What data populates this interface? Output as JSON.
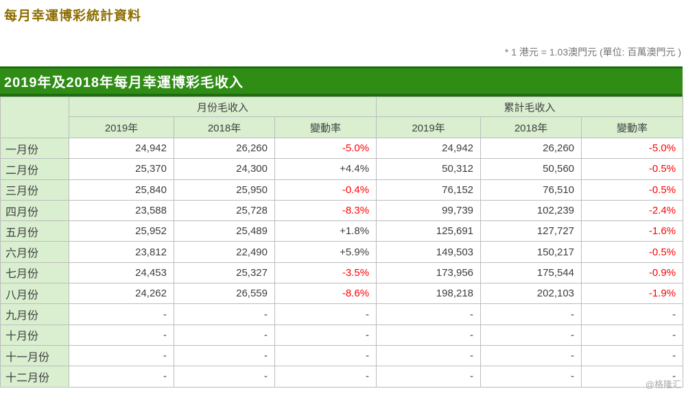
{
  "page": {
    "title": "每月幸運博彩統計資料",
    "note": "* 1 港元 = 1.03澳門元 (單位: 百萬澳門元  )",
    "watermark": "@格隆汇"
  },
  "section": {
    "title": "2019年及2018年每月幸運博彩毛收入"
  },
  "colors": {
    "title_gold": "#8c6d00",
    "section_green": "#2f8c15",
    "section_green_dark": "#1d6d0d",
    "header_light_green": "#d9efd0",
    "negative_red": "#ff0000",
    "text_dark": "#3c3c3c"
  },
  "table": {
    "group_headers": [
      "月份毛收入",
      "累計毛收入"
    ],
    "sub_headers": [
      "2019年",
      "2018年",
      "變動率"
    ],
    "rows": [
      {
        "month": "一月份",
        "monthly_2019": "24,942",
        "monthly_2018": "26,260",
        "monthly_change": "-5.0%",
        "cum_2019": "24,942",
        "cum_2018": "26,260",
        "cum_change": "-5.0%"
      },
      {
        "month": "二月份",
        "monthly_2019": "25,370",
        "monthly_2018": "24,300",
        "monthly_change": "+4.4%",
        "cum_2019": "50,312",
        "cum_2018": "50,560",
        "cum_change": "-0.5%"
      },
      {
        "month": "三月份",
        "monthly_2019": "25,840",
        "monthly_2018": "25,950",
        "monthly_change": "-0.4%",
        "cum_2019": "76,152",
        "cum_2018": "76,510",
        "cum_change": "-0.5%"
      },
      {
        "month": "四月份",
        "monthly_2019": "23,588",
        "monthly_2018": "25,728",
        "monthly_change": "-8.3%",
        "cum_2019": "99,739",
        "cum_2018": "102,239",
        "cum_change": "-2.4%"
      },
      {
        "month": "五月份",
        "monthly_2019": "25,952",
        "monthly_2018": "25,489",
        "monthly_change": "+1.8%",
        "cum_2019": "125,691",
        "cum_2018": "127,727",
        "cum_change": "-1.6%"
      },
      {
        "month": "六月份",
        "monthly_2019": "23,812",
        "monthly_2018": "22,490",
        "monthly_change": "+5.9%",
        "cum_2019": "149,503",
        "cum_2018": "150,217",
        "cum_change": "-0.5%"
      },
      {
        "month": "七月份",
        "monthly_2019": "24,453",
        "monthly_2018": "25,327",
        "monthly_change": "-3.5%",
        "cum_2019": "173,956",
        "cum_2018": "175,544",
        "cum_change": "-0.9%"
      },
      {
        "month": "八月份",
        "monthly_2019": "24,262",
        "monthly_2018": "26,559",
        "monthly_change": "-8.6%",
        "cum_2019": "198,218",
        "cum_2018": "202,103",
        "cum_change": "-1.9%"
      },
      {
        "month": "九月份",
        "monthly_2019": "-",
        "monthly_2018": "-",
        "monthly_change": "-",
        "cum_2019": "-",
        "cum_2018": "-",
        "cum_change": "-"
      },
      {
        "month": "十月份",
        "monthly_2019": "-",
        "monthly_2018": "-",
        "monthly_change": "-",
        "cum_2019": "-",
        "cum_2018": "-",
        "cum_change": "-"
      },
      {
        "month": "十一月份",
        "monthly_2019": "-",
        "monthly_2018": "-",
        "monthly_change": "-",
        "cum_2019": "-",
        "cum_2018": "-",
        "cum_change": "-"
      },
      {
        "month": "十二月份",
        "monthly_2019": "-",
        "monthly_2018": "-",
        "monthly_change": "-",
        "cum_2019": "-",
        "cum_2018": "-",
        "cum_change": "-"
      }
    ]
  }
}
